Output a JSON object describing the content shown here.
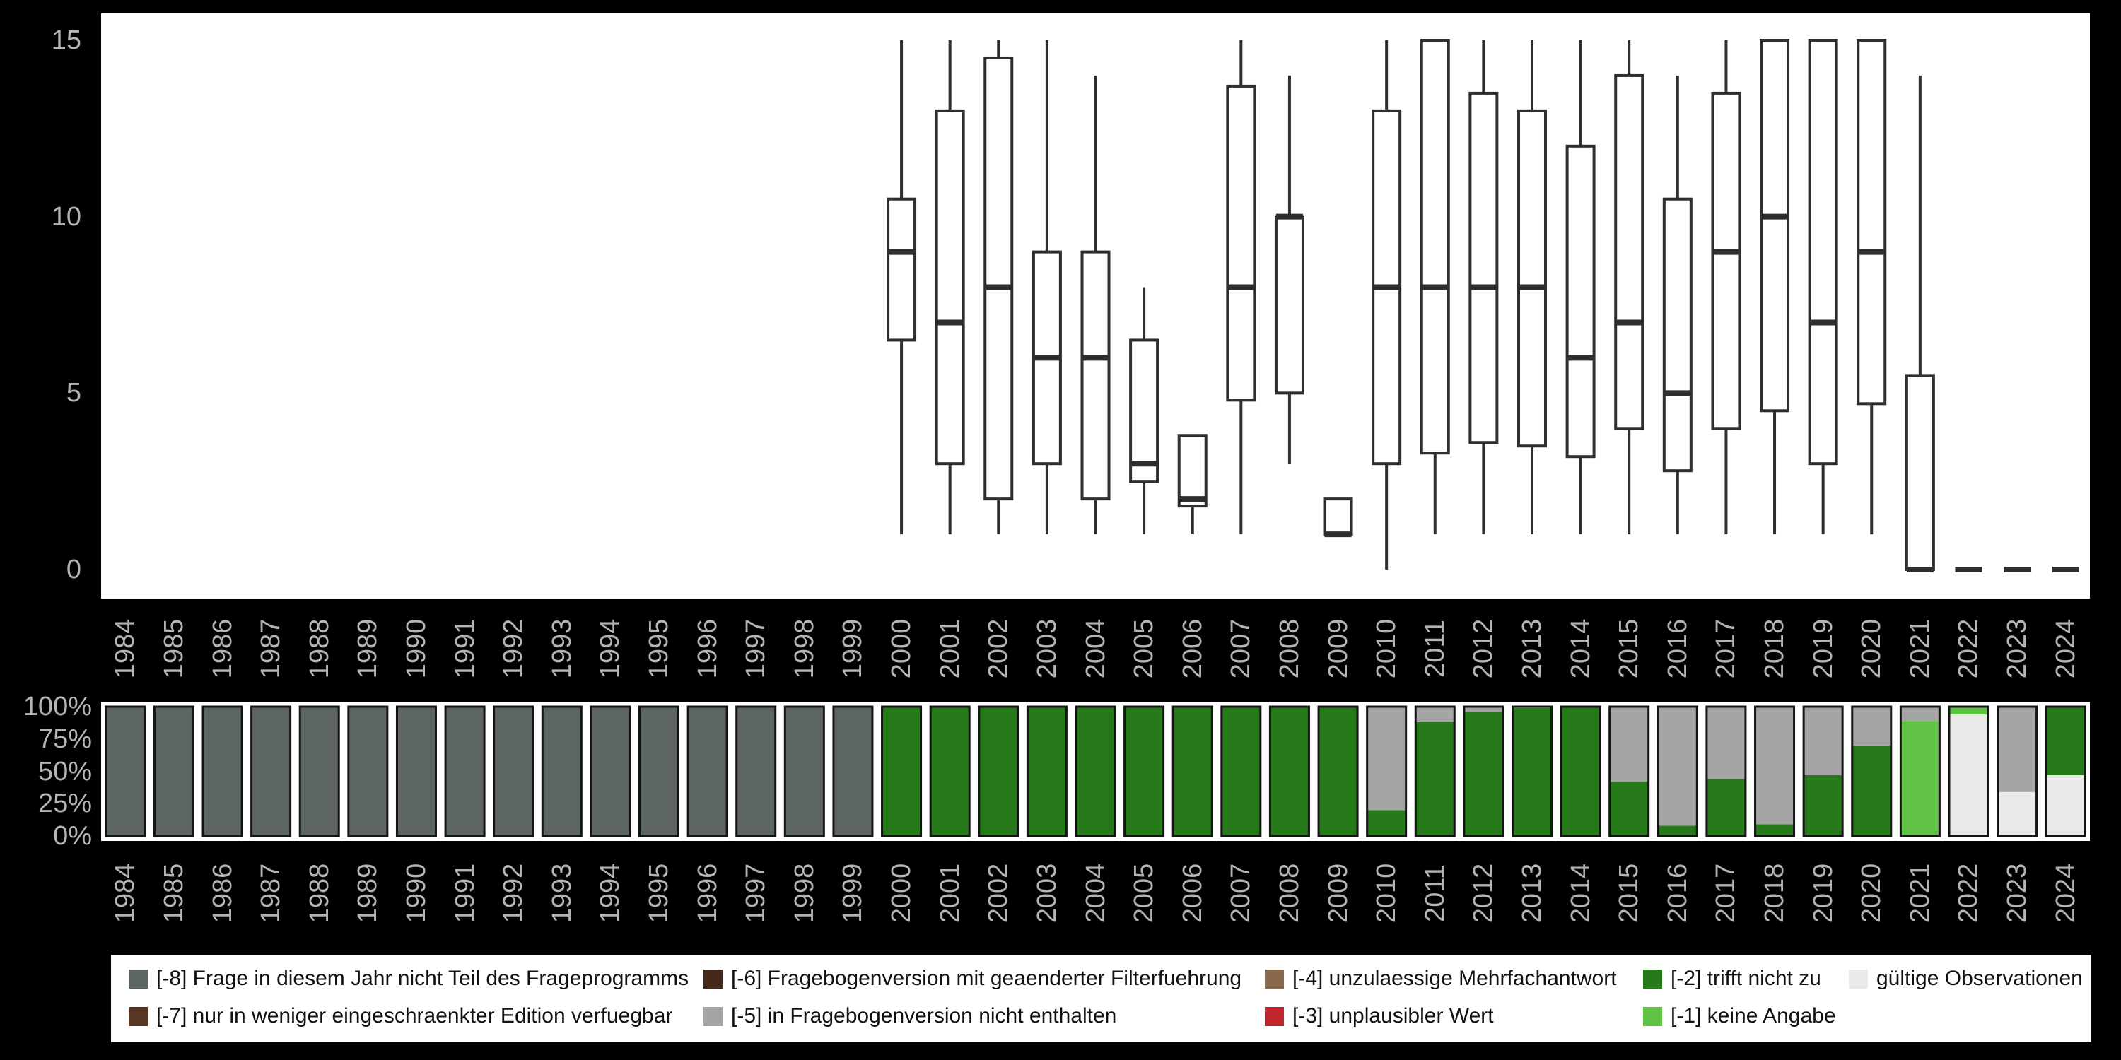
{
  "page": {
    "background": "#000000"
  },
  "colors": {
    "panel_background": "#ffffff",
    "axis_text": "#b4b4b4",
    "box_stroke": "#2e2e2e",
    "bar_outline": "#141414",
    "categories": {
      "-8": "#5d6563",
      "-7": "#573623",
      "-6": "#44291a",
      "-5": "#a5a5a5",
      "-4": "#8a684c",
      "-3": "#c1272d",
      "-2": "#267a19",
      "-1": "#61c346",
      "valid": "#eaeae8"
    }
  },
  "chart_data": [
    {
      "type": "boxplot",
      "title": "",
      "xlabel": "",
      "ylabel": "",
      "ylim": [
        0,
        15
      ],
      "yticks": [
        0,
        5,
        10,
        15
      ],
      "grid": false,
      "categories": [
        "1984",
        "1985",
        "1986",
        "1987",
        "1988",
        "1989",
        "1990",
        "1991",
        "1992",
        "1993",
        "1994",
        "1995",
        "1996",
        "1997",
        "1998",
        "1999",
        "2000",
        "2001",
        "2002",
        "2003",
        "2004",
        "2005",
        "2006",
        "2007",
        "2008",
        "2009",
        "2010",
        "2011",
        "2012",
        "2013",
        "2014",
        "2015",
        "2016",
        "2017",
        "2018",
        "2019",
        "2020",
        "2021",
        "2022",
        "2023",
        "2024"
      ],
      "boxes": {
        "2000": {
          "min": 1,
          "q1": 6.5,
          "median": 9,
          "q3": 10.5,
          "max": 15
        },
        "2001": {
          "min": 1,
          "q1": 3,
          "median": 7,
          "q3": 13,
          "max": 15
        },
        "2002": {
          "min": 1,
          "q1": 2,
          "median": 8,
          "q3": 14.5,
          "max": 15
        },
        "2003": {
          "min": 1,
          "q1": 3,
          "median": 6,
          "q3": 9,
          "max": 15
        },
        "2004": {
          "min": 1,
          "q1": 2,
          "median": 6,
          "q3": 9,
          "max": 14
        },
        "2005": {
          "min": 1,
          "q1": 2.5,
          "median": 3,
          "q3": 6.5,
          "max": 8
        },
        "2006": {
          "min": 1,
          "q1": 1.8,
          "median": 2,
          "q3": 3.8,
          "max": 3.8
        },
        "2007": {
          "min": 1,
          "q1": 4.8,
          "median": 8,
          "q3": 13.7,
          "max": 15
        },
        "2008": {
          "min": 3,
          "q1": 5,
          "median": 10,
          "q3": 10,
          "max": 14
        },
        "2009": {
          "min": 1,
          "q1": 1,
          "median": 1,
          "q3": 2,
          "max": 2
        },
        "2010": {
          "min": 0,
          "q1": 3,
          "median": 8,
          "q3": 13,
          "max": 15
        },
        "2011": {
          "min": 1,
          "q1": 3.3,
          "median": 8,
          "q3": 15,
          "max": 15
        },
        "2012": {
          "min": 1,
          "q1": 3.6,
          "median": 8,
          "q3": 13.5,
          "max": 15
        },
        "2013": {
          "min": 1,
          "q1": 3.5,
          "median": 8,
          "q3": 13,
          "max": 15
        },
        "2014": {
          "min": 1,
          "q1": 3.2,
          "median": 6,
          "q3": 12,
          "max": 15
        },
        "2015": {
          "min": 1,
          "q1": 4,
          "median": 7,
          "q3": 14,
          "max": 15
        },
        "2016": {
          "min": 1,
          "q1": 2.8,
          "median": 5,
          "q3": 10.5,
          "max": 14
        },
        "2017": {
          "min": 1,
          "q1": 4,
          "median": 9,
          "q3": 13.5,
          "max": 15
        },
        "2018": {
          "min": 1,
          "q1": 4.5,
          "median": 10,
          "q3": 15,
          "max": 15
        },
        "2019": {
          "min": 1,
          "q1": 3,
          "median": 7,
          "q3": 15,
          "max": 15
        },
        "2020": {
          "min": 1,
          "q1": 4.7,
          "median": 9,
          "q3": 15,
          "max": 15
        },
        "2021": {
          "min": 0,
          "q1": 0,
          "median": 0,
          "q3": 5.5,
          "max": 14
        },
        "2022": {
          "min": 0,
          "q1": 0,
          "median": 0,
          "q3": 0,
          "max": 0
        },
        "2023": {
          "min": 0,
          "q1": 0,
          "median": 0,
          "q3": 0,
          "max": 0
        },
        "2024": {
          "min": 0,
          "q1": 0,
          "median": 0,
          "q3": 0,
          "max": 0
        }
      }
    },
    {
      "type": "stacked_bar_percent",
      "title": "",
      "xlabel": "",
      "ylabel": "",
      "yticks": [
        "0%",
        "25%",
        "50%",
        "75%",
        "100%"
      ],
      "grid": false,
      "categories": [
        "1984",
        "1985",
        "1986",
        "1987",
        "1988",
        "1989",
        "1990",
        "1991",
        "1992",
        "1993",
        "1994",
        "1995",
        "1996",
        "1997",
        "1998",
        "1999",
        "2000",
        "2001",
        "2002",
        "2003",
        "2004",
        "2005",
        "2006",
        "2007",
        "2008",
        "2009",
        "2010",
        "2011",
        "2012",
        "2013",
        "2014",
        "2015",
        "2016",
        "2017",
        "2018",
        "2019",
        "2020",
        "2021",
        "2022",
        "2023",
        "2024"
      ],
      "stack_order_bottom_to_top": [
        "valid",
        "-1",
        "-2",
        "-3",
        "-4",
        "-5",
        "-6",
        "-7",
        "-8"
      ],
      "bars": {
        "1984": {
          "-8": 100
        },
        "1985": {
          "-8": 100
        },
        "1986": {
          "-8": 100
        },
        "1987": {
          "-8": 100
        },
        "1988": {
          "-8": 100
        },
        "1989": {
          "-8": 100
        },
        "1990": {
          "-8": 100
        },
        "1991": {
          "-8": 100
        },
        "1992": {
          "-8": 100
        },
        "1993": {
          "-8": 100
        },
        "1994": {
          "-8": 100
        },
        "1995": {
          "-8": 100
        },
        "1996": {
          "-8": 100
        },
        "1997": {
          "-8": 100
        },
        "1998": {
          "-8": 100
        },
        "1999": {
          "-8": 100
        },
        "2000": {
          "-2": 100
        },
        "2001": {
          "-2": 100
        },
        "2002": {
          "-2": 100
        },
        "2003": {
          "-2": 100
        },
        "2004": {
          "-2": 100
        },
        "2005": {
          "-2": 100
        },
        "2006": {
          "-2": 100
        },
        "2007": {
          "-2": 100
        },
        "2008": {
          "-2": 100
        },
        "2009": {
          "-2": 100
        },
        "2010": {
          "-2": 20,
          "-5": 80
        },
        "2011": {
          "-2": 88,
          "-5": 12
        },
        "2012": {
          "-2": 96,
          "-5": 4
        },
        "2013": {
          "-2": 99,
          "-5": 1
        },
        "2014": {
          "-2": 100
        },
        "2015": {
          "-2": 42,
          "-5": 58
        },
        "2016": {
          "-2": 8,
          "-5": 92
        },
        "2017": {
          "-2": 44,
          "-5": 56
        },
        "2018": {
          "-2": 9,
          "-5": 91
        },
        "2019": {
          "-2": 47,
          "-5": 53
        },
        "2020": {
          "-2": 70,
          "-5": 30
        },
        "2021": {
          "-1": 89,
          "-5": 11
        },
        "2022": {
          "valid": 94,
          "-1": 6
        },
        "2023": {
          "valid": 34,
          "-5": 66
        },
        "2024": {
          "valid": 47,
          "-2": 53
        }
      }
    }
  ],
  "legend": {
    "columns": [
      {
        "items": [
          {
            "key": "-8",
            "label": "[-8] Frage in diesem Jahr nicht Teil des Frageprogramms"
          },
          {
            "key": "-7",
            "label": "[-7] nur in weniger eingeschraenkter Edition verfuegbar"
          }
        ]
      },
      {
        "items": [
          {
            "key": "-6",
            "label": "[-6] Fragebogenversion mit geaenderter Filterfuehrung"
          },
          {
            "key": "-5",
            "label": "[-5] in Fragebogenversion nicht enthalten"
          }
        ]
      },
      {
        "items": [
          {
            "key": "-4",
            "label": "[-4] unzulaessige Mehrfachantwort"
          },
          {
            "key": "-3",
            "label": "[-3] unplausibler Wert"
          }
        ]
      },
      {
        "items": [
          {
            "key": "-2",
            "label": "[-2] trifft nicht zu"
          },
          {
            "key": "-1",
            "label": "[-1] keine Angabe"
          }
        ]
      },
      {
        "items": [
          {
            "key": "valid",
            "label": "gültige Observationen"
          }
        ]
      }
    ]
  }
}
